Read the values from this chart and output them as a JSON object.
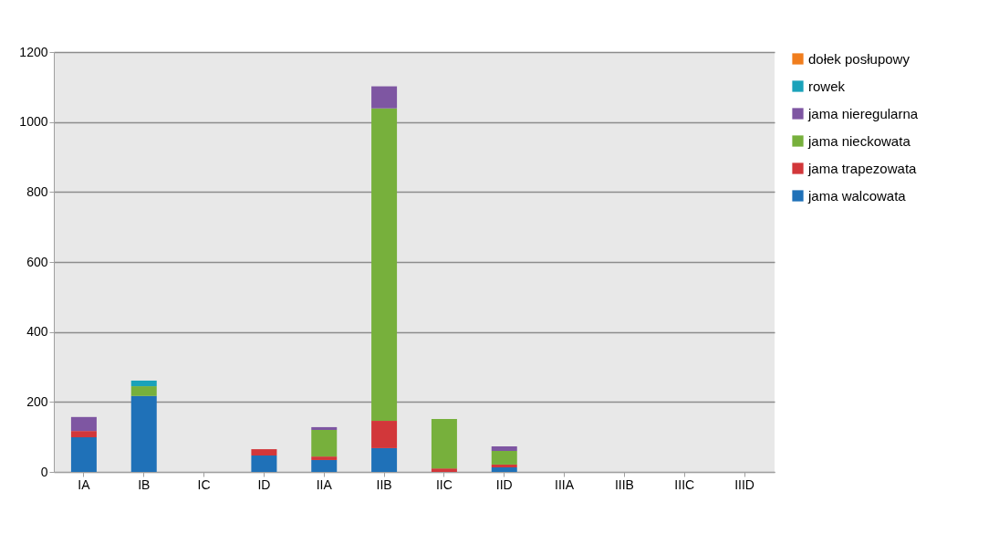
{
  "chart_data": {
    "type": "bar",
    "stacked": true,
    "categories": [
      "IA",
      "IB",
      "IC",
      "ID",
      "IIA",
      "IIB",
      "IIC",
      "IID",
      "IIIA",
      "IIIB",
      "IIIC",
      "IIID"
    ],
    "series": [
      {
        "name": "jama walcowata",
        "color": "#1f71b8",
        "values": [
          99,
          217,
          0,
          47,
          34,
          68,
          0,
          13,
          0,
          0,
          0,
          0
        ]
      },
      {
        "name": "jama trapezowata",
        "color": "#d2373a",
        "values": [
          18,
          0,
          0,
          18,
          10,
          78,
          10,
          8,
          0,
          0,
          0,
          0
        ]
      },
      {
        "name": "jama nieckowata",
        "color": "#77b03c",
        "values": [
          0,
          28,
          0,
          0,
          76,
          893,
          141,
          39,
          0,
          0,
          0,
          0
        ]
      },
      {
        "name": "jama nieregularna",
        "color": "#7e56a2",
        "values": [
          40,
          0,
          0,
          0,
          8,
          63,
          0,
          13,
          0,
          0,
          0,
          0
        ]
      },
      {
        "name": "rowek",
        "color": "#1aa2ba",
        "values": [
          0,
          16,
          0,
          0,
          0,
          0,
          0,
          0,
          0,
          0,
          0,
          0
        ]
      },
      {
        "name": "dołek posłupowy",
        "color": "#f07d1d",
        "values": [
          0,
          0,
          0,
          0,
          0,
          0,
          0,
          0,
          0,
          0,
          0,
          0
        ]
      }
    ],
    "ylim": [
      0,
      1200
    ],
    "yticks": [
      0,
      200,
      400,
      600,
      800,
      1000,
      1200
    ],
    "grid": "y",
    "legend": "right"
  }
}
